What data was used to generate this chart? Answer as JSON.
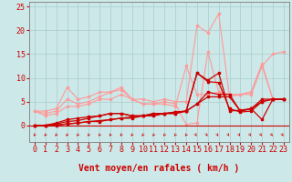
{
  "xlabel": "Vent moyen/en rafales ( km/h )",
  "bg_color": "#cce8e8",
  "grid_color": "#aacccc",
  "xlim": [
    -0.5,
    23.5
  ],
  "ylim": [
    -3.5,
    26
  ],
  "yticks": [
    0,
    5,
    10,
    15,
    20,
    25
  ],
  "xticks": [
    0,
    1,
    2,
    3,
    4,
    5,
    6,
    7,
    8,
    9,
    10,
    11,
    12,
    13,
    14,
    15,
    16,
    17,
    18,
    19,
    20,
    21,
    22,
    23
  ],
  "x": [
    0,
    1,
    2,
    3,
    4,
    5,
    6,
    7,
    8,
    9,
    10,
    11,
    12,
    13,
    14,
    15,
    16,
    17,
    18,
    19,
    20,
    21,
    22,
    23
  ],
  "lines_dark": [
    [
      0.0,
      0.0,
      0.0,
      0.3,
      0.5,
      0.8,
      1.0,
      1.2,
      1.5,
      1.8,
      2.0,
      2.2,
      2.5,
      2.8,
      3.0,
      11.0,
      9.5,
      11.0,
      3.0,
      3.2,
      3.5,
      1.2,
      5.5,
      5.5
    ],
    [
      0.0,
      0.0,
      0.1,
      0.3,
      0.5,
      0.8,
      0.8,
      1.2,
      1.5,
      1.5,
      2.0,
      2.0,
      2.5,
      2.8,
      3.0,
      11.0,
      9.2,
      9.0,
      3.5,
      2.8,
      3.0,
      5.0,
      5.5,
      5.5
    ],
    [
      0.0,
      0.0,
      0.5,
      1.2,
      1.5,
      1.8,
      2.0,
      2.5,
      2.5,
      2.0,
      2.0,
      2.5,
      2.5,
      2.5,
      3.0,
      4.5,
      7.0,
      6.5,
      6.5,
      3.0,
      3.5,
      5.5,
      5.5,
      5.5
    ],
    [
      0.0,
      0.0,
      0.3,
      0.8,
      1.0,
      1.5,
      2.0,
      2.5,
      2.5,
      2.0,
      2.0,
      2.5,
      2.5,
      2.5,
      3.0,
      4.5,
      6.0,
      6.0,
      6.0,
      3.0,
      3.5,
      5.0,
      5.5,
      5.5
    ]
  ],
  "lines_light": [
    [
      3.0,
      3.0,
      3.5,
      8.0,
      5.5,
      6.0,
      7.0,
      7.0,
      8.0,
      5.5,
      5.5,
      5.0,
      5.5,
      5.0,
      5.0,
      21.0,
      19.5,
      23.5,
      6.0,
      6.5,
      7.0,
      13.0,
      5.5,
      5.5
    ],
    [
      3.0,
      2.5,
      3.0,
      5.5,
      4.5,
      5.0,
      6.0,
      7.0,
      7.5,
      5.5,
      4.5,
      4.5,
      5.0,
      4.5,
      0.2,
      0.5,
      15.5,
      7.0,
      6.5,
      6.5,
      7.0,
      12.5,
      5.5,
      5.5
    ],
    [
      3.0,
      2.0,
      2.5,
      4.0,
      4.0,
      4.5,
      5.5,
      5.5,
      6.5,
      5.5,
      4.5,
      4.5,
      4.5,
      4.0,
      12.5,
      6.5,
      6.5,
      7.0,
      6.5,
      6.5,
      6.5,
      12.5,
      15.0,
      15.5
    ]
  ],
  "dark_color": "#cc0000",
  "light_color": "#ff9999",
  "xlabel_fontsize": 7,
  "tick_fontsize": 6,
  "arrow_directions_left": [
    0,
    1,
    2,
    3,
    4,
    5,
    6,
    7,
    8,
    9,
    10,
    11,
    12,
    13,
    14
  ],
  "arrow_directions_right": [
    15,
    16,
    17,
    18,
    19,
    20,
    21,
    22,
    23
  ]
}
